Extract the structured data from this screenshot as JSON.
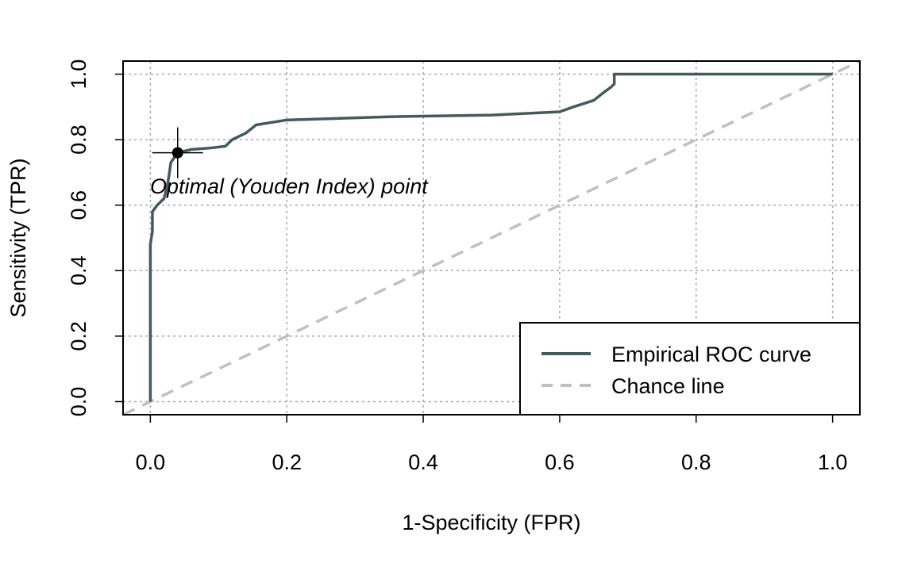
{
  "chart_data": {
    "type": "line",
    "title": "",
    "xlabel": "1-Specificity (FPR)",
    "ylabel": "Sensitivity (TPR)",
    "xlim": [
      -0.04,
      1.04
    ],
    "ylim": [
      -0.04,
      1.04
    ],
    "x_ticks": [
      "0.0",
      "0.2",
      "0.4",
      "0.6",
      "0.8",
      "1.0"
    ],
    "y_ticks": [
      "0.0",
      "0.2",
      "0.4",
      "0.6",
      "0.8",
      "1.0"
    ],
    "grid": true,
    "legend_position": "bottom-right",
    "series": [
      {
        "name": "Empirical ROC curve",
        "color": "#455a5a",
        "style": "solid",
        "points": [
          [
            0.0,
            0.0
          ],
          [
            0.0,
            0.48
          ],
          [
            0.003,
            0.52
          ],
          [
            0.003,
            0.58
          ],
          [
            0.01,
            0.6
          ],
          [
            0.02,
            0.62
          ],
          [
            0.025,
            0.66
          ],
          [
            0.028,
            0.7
          ],
          [
            0.03,
            0.73
          ],
          [
            0.04,
            0.76
          ],
          [
            0.06,
            0.77
          ],
          [
            0.09,
            0.775
          ],
          [
            0.11,
            0.78
          ],
          [
            0.12,
            0.8
          ],
          [
            0.14,
            0.82
          ],
          [
            0.155,
            0.845
          ],
          [
            0.2,
            0.86
          ],
          [
            0.35,
            0.87
          ],
          [
            0.5,
            0.875
          ],
          [
            0.6,
            0.885
          ],
          [
            0.62,
            0.9
          ],
          [
            0.65,
            0.92
          ],
          [
            0.665,
            0.945
          ],
          [
            0.675,
            0.96
          ],
          [
            0.68,
            0.97
          ],
          [
            0.68,
            1.0
          ],
          [
            1.0,
            1.0
          ]
        ]
      },
      {
        "name": "Chance line",
        "color": "#c0c0c0",
        "style": "dashed",
        "points": [
          [
            -0.04,
            -0.04
          ],
          [
            1.04,
            1.04
          ]
        ]
      }
    ],
    "annotations": [
      {
        "text": "Optimal (Youden Index) point",
        "x": 0.04,
        "y": 0.76
      }
    ]
  }
}
